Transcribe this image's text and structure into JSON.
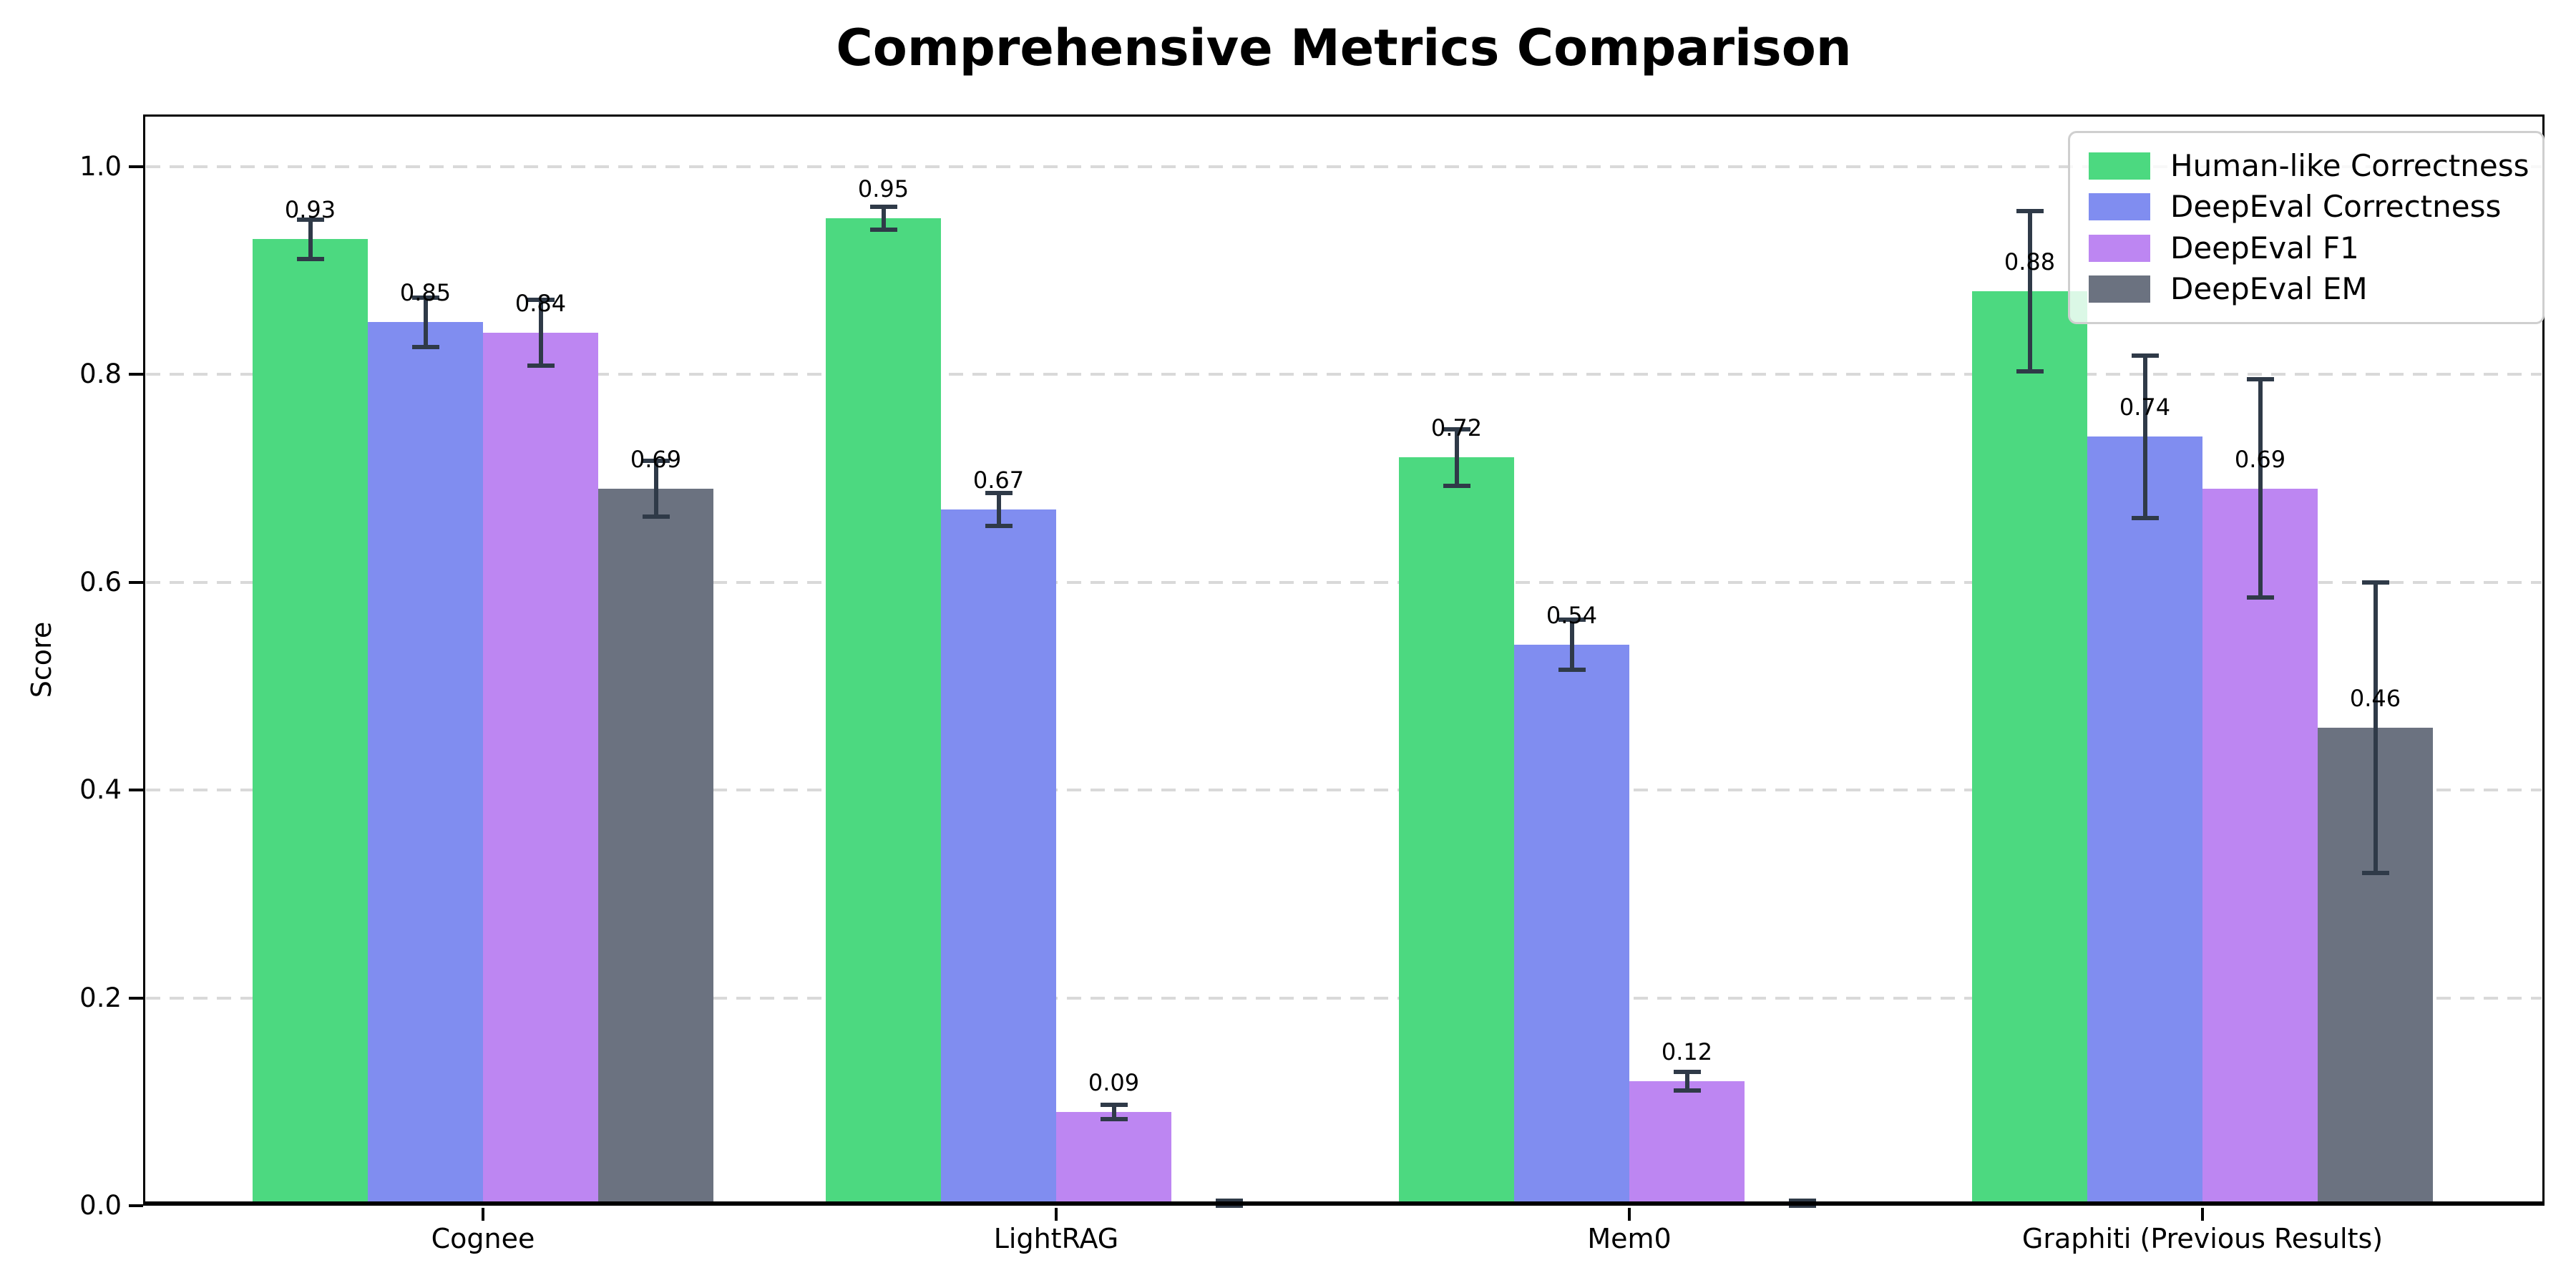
{
  "chart_data": {
    "type": "bar",
    "title": "Comprehensive Metrics Comparison",
    "ylabel": "Score",
    "xlabel": "",
    "categories": [
      "Cognee",
      "LightRAG",
      "Mem0",
      "Graphiti (Previous Results)"
    ],
    "series": [
      {
        "name": "Human-like Correctness",
        "color": "#4cd980",
        "values": [
          0.93,
          0.95,
          0.72,
          0.88
        ],
        "errors": [
          0.019,
          0.011,
          0.027,
          0.077
        ],
        "labels": [
          "0.93",
          "0.95",
          "0.72",
          "0.88"
        ]
      },
      {
        "name": "DeepEval Correctness",
        "color": "#808df0",
        "values": [
          0.85,
          0.67,
          0.54,
          0.74
        ],
        "errors": [
          0.024,
          0.016,
          0.024,
          0.078
        ],
        "labels": [
          "0.85",
          "0.67",
          "0.54",
          "0.74"
        ]
      },
      {
        "name": "DeepEval F1",
        "color": "#bd86f2",
        "values": [
          0.84,
          0.09,
          0.12,
          0.69
        ],
        "errors": [
          0.032,
          0.007,
          0.009,
          0.105
        ],
        "labels": [
          "0.84",
          "0.09",
          "0.12",
          "0.69"
        ]
      },
      {
        "name": "DeepEval EM",
        "color": "#6b7280",
        "values": [
          0.69,
          0.0,
          0.0,
          0.46
        ],
        "errors": [
          0.027,
          0.005,
          0.005,
          0.14
        ],
        "labels": [
          "0.69",
          "",
          "",
          "0.46"
        ]
      }
    ],
    "yticks": [
      0.0,
      0.2,
      0.4,
      0.6,
      0.8,
      1.0
    ],
    "ytick_labels": [
      "0.0",
      "0.2",
      "0.4",
      "0.6",
      "0.8",
      "1.0"
    ],
    "ylim": [
      0,
      1.05
    ],
    "grid": "horizontal dashed",
    "legend_position": "upper right",
    "error_bar_color": "#2f3a48"
  }
}
